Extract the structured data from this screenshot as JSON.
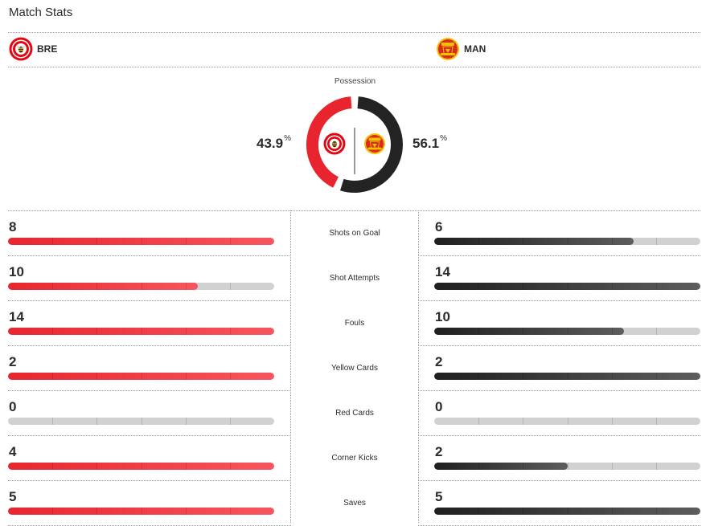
{
  "header": {
    "title": "Match Stats"
  },
  "teams": {
    "home": {
      "abbr": "BRE",
      "color": "#e8252f",
      "logo_icon": "brentford-crest-icon"
    },
    "away": {
      "abbr": "MAN",
      "color": "#232323",
      "logo_icon": "manchester-united-crest-icon"
    }
  },
  "possession": {
    "label": "Possession",
    "home_value": "43.9",
    "away_value": "56.1",
    "unit": "%",
    "home_fraction": 0.439,
    "away_fraction": 0.561
  },
  "stats": [
    {
      "label": "Shots on Goal",
      "home": "8",
      "away": "6",
      "home_fill": 1.0,
      "away_fill": 0.75
    },
    {
      "label": "Shot Attempts",
      "home": "10",
      "away": "14",
      "home_fill": 0.714,
      "away_fill": 1.0
    },
    {
      "label": "Fouls",
      "home": "14",
      "away": "10",
      "home_fill": 1.0,
      "away_fill": 0.714
    },
    {
      "label": "Yellow Cards",
      "home": "2",
      "away": "2",
      "home_fill": 1.0,
      "away_fill": 1.0
    },
    {
      "label": "Red Cards",
      "home": "0",
      "away": "0",
      "home_fill": 0.0,
      "away_fill": 0.0
    },
    {
      "label": "Corner Kicks",
      "home": "4",
      "away": "2",
      "home_fill": 1.0,
      "away_fill": 0.5
    },
    {
      "label": "Saves",
      "home": "5",
      "away": "5",
      "home_fill": 1.0,
      "away_fill": 1.0
    }
  ]
}
